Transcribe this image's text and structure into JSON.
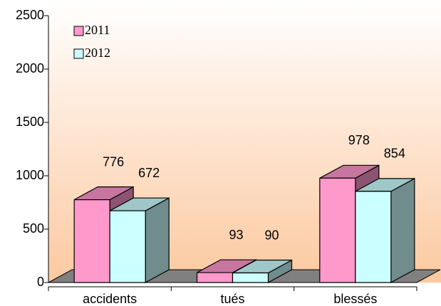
{
  "chart_data": {
    "type": "bar3d",
    "categories": [
      "accidents",
      "tués",
      "blessés"
    ],
    "series": [
      {
        "name": "2011",
        "color": "#ff99cc",
        "values": [
          776,
          93,
          978
        ]
      },
      {
        "name": "2012",
        "color": "#ccffff",
        "values": [
          672,
          90,
          854
        ]
      }
    ],
    "ylim": [
      0,
      2500
    ],
    "yticks": [
      0,
      500,
      1000,
      1500,
      2000,
      2500
    ],
    "legend": "top-left"
  }
}
